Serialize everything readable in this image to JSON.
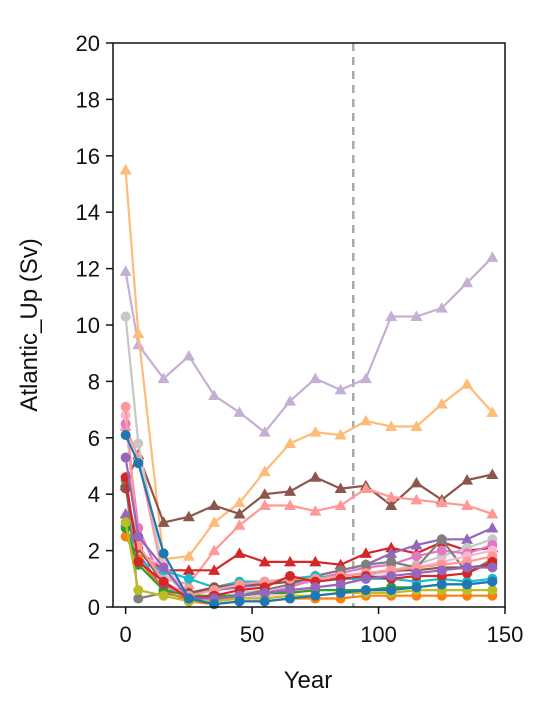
{
  "chart_data": {
    "type": "line",
    "xlabel": "Year",
    "ylabel": "Atlantic_Up (Sv)",
    "xlim": [
      -5,
      150
    ],
    "ylim": [
      0,
      20
    ],
    "xticks": [
      0,
      50,
      100,
      150
    ],
    "yticks": [
      0,
      2,
      4,
      6,
      8,
      10,
      12,
      14,
      16,
      18,
      20
    ],
    "vline": {
      "x": 90,
      "color": "#aaaaaa",
      "style": "dashed"
    },
    "x": [
      0,
      5,
      15,
      25,
      35,
      45,
      55,
      65,
      75,
      85,
      95,
      105,
      115,
      125,
      135,
      145
    ],
    "series": [
      {
        "color": "#c5b0d5",
        "marker": "triangle",
        "values": [
          11.9,
          9.3,
          8.1,
          8.9,
          7.5,
          6.9,
          6.2,
          7.3,
          8.1,
          7.7,
          8.1,
          10.3,
          10.3,
          10.6,
          11.5,
          12.4
        ]
      },
      {
        "color": "#ffbb78",
        "marker": "triangle",
        "values": [
          15.5,
          9.7,
          1.7,
          1.8,
          3.0,
          3.7,
          4.8,
          5.8,
          6.2,
          6.1,
          6.6,
          6.4,
          6.4,
          7.2,
          7.9,
          6.9
        ]
      },
      {
        "color": "#8c564b",
        "marker": "triangle",
        "values": [
          4.4,
          5.4,
          3.0,
          3.2,
          3.6,
          3.3,
          4.0,
          4.1,
          4.6,
          4.2,
          4.3,
          3.6,
          4.4,
          3.8,
          4.5,
          4.7
        ]
      },
      {
        "color": "#ff9896",
        "marker": "triangle",
        "values": [
          6.4,
          5.3,
          1.0,
          0.8,
          2.0,
          2.9,
          3.6,
          3.6,
          3.4,
          3.6,
          4.2,
          3.9,
          3.8,
          3.7,
          3.6,
          3.3
        ]
      },
      {
        "color": "#d62728",
        "marker": "triangle",
        "values": [
          4.3,
          2.0,
          1.3,
          1.3,
          1.3,
          1.9,
          1.6,
          1.6,
          1.6,
          1.5,
          1.9,
          2.1,
          1.9,
          2.3,
          2.0,
          2.1
        ]
      },
      {
        "color": "#9467bd",
        "marker": "triangle",
        "values": [
          3.3,
          1.9,
          0.6,
          0.5,
          0.6,
          0.7,
          0.8,
          0.9,
          1.1,
          1.3,
          1.5,
          1.9,
          2.2,
          2.4,
          2.4,
          2.8
        ]
      },
      {
        "color": "#c7c7c7",
        "marker": "circle",
        "values": [
          10.3,
          5.8,
          1.2,
          0.4,
          0.3,
          0.5,
          0.6,
          0.8,
          0.9,
          1.0,
          1.1,
          1.3,
          1.5,
          1.8,
          2.1,
          2.4
        ]
      },
      {
        "color": "#e377c2",
        "marker": "circle",
        "values": [
          6.5,
          2.8,
          0.8,
          0.3,
          0.2,
          0.4,
          0.5,
          0.7,
          1.0,
          1.2,
          1.4,
          1.5,
          1.8,
          2.0,
          1.9,
          2.2
        ]
      },
      {
        "color": "#7f7f7f",
        "marker": "circle",
        "values": [
          4.5,
          0.3,
          0.5,
          0.3,
          0.2,
          0.4,
          0.6,
          0.8,
          1.1,
          1.3,
          1.5,
          1.6,
          1.4,
          2.4,
          1.2,
          1.7
        ]
      },
      {
        "color": "#f7b6d2",
        "marker": "circle",
        "values": [
          6.8,
          1.8,
          1.5,
          0.4,
          0.2,
          0.3,
          0.4,
          0.5,
          0.7,
          0.8,
          1.0,
          1.2,
          1.4,
          1.6,
          1.8,
          2.0
        ]
      },
      {
        "color": "#17becf",
        "marker": "circle",
        "values": [
          2.9,
          1.6,
          1.3,
          1.0,
          0.7,
          0.9,
          0.9,
          1.0,
          1.1,
          1.0,
          1.0,
          1.0,
          0.9,
          1.0,
          0.9,
          1.0
        ]
      },
      {
        "color": "#ff7f0e",
        "marker": "circle",
        "values": [
          2.5,
          1.7,
          0.6,
          0.2,
          0.1,
          0.2,
          0.2,
          0.3,
          0.3,
          0.3,
          0.4,
          0.4,
          0.4,
          0.4,
          0.4,
          0.4
        ]
      },
      {
        "color": "#2ca02c",
        "marker": "circle",
        "values": [
          2.8,
          1.5,
          0.6,
          0.4,
          0.4,
          0.4,
          0.5,
          0.5,
          0.6,
          0.6,
          0.6,
          0.7,
          0.7,
          0.8,
          0.8,
          0.9
        ]
      },
      {
        "color": "#bcbd22",
        "marker": "circle",
        "values": [
          3.0,
          0.6,
          0.4,
          0.2,
          0.2,
          0.3,
          0.3,
          0.4,
          0.4,
          0.5,
          0.5,
          0.5,
          0.6,
          0.6,
          0.6,
          0.6
        ]
      },
      {
        "color": "#8c564b",
        "marker": "circle",
        "values": [
          4.2,
          2.1,
          0.8,
          0.5,
          0.7,
          0.8,
          0.8,
          0.9,
          1.0,
          1.1,
          1.2,
          1.3,
          1.3,
          1.4,
          1.4,
          1.5
        ]
      },
      {
        "color": "#ff9896",
        "marker": "circle",
        "values": [
          7.1,
          2.2,
          0.9,
          0.4,
          0.6,
          0.8,
          0.9,
          1.0,
          1.0,
          1.1,
          1.2,
          1.3,
          1.4,
          1.5,
          1.6,
          1.8
        ]
      },
      {
        "color": "#d62728",
        "marker": "circle",
        "values": [
          4.6,
          1.6,
          0.9,
          0.3,
          0.4,
          0.6,
          0.7,
          1.1,
          0.9,
          1.0,
          1.1,
          1.0,
          1.1,
          1.1,
          1.2,
          1.6
        ]
      },
      {
        "color": "#9467bd",
        "marker": "circle",
        "values": [
          5.3,
          2.5,
          1.4,
          0.3,
          0.3,
          0.4,
          0.5,
          0.6,
          0.7,
          0.8,
          1.0,
          1.1,
          1.2,
          1.3,
          1.4,
          1.4
        ]
      },
      {
        "color": "#1f77b4",
        "marker": "circle",
        "values": [
          6.1,
          5.1,
          1.9,
          0.3,
          0.1,
          0.2,
          0.2,
          0.3,
          0.4,
          0.5,
          0.6,
          0.6,
          0.7,
          0.8,
          0.8,
          0.9
        ]
      }
    ]
  }
}
